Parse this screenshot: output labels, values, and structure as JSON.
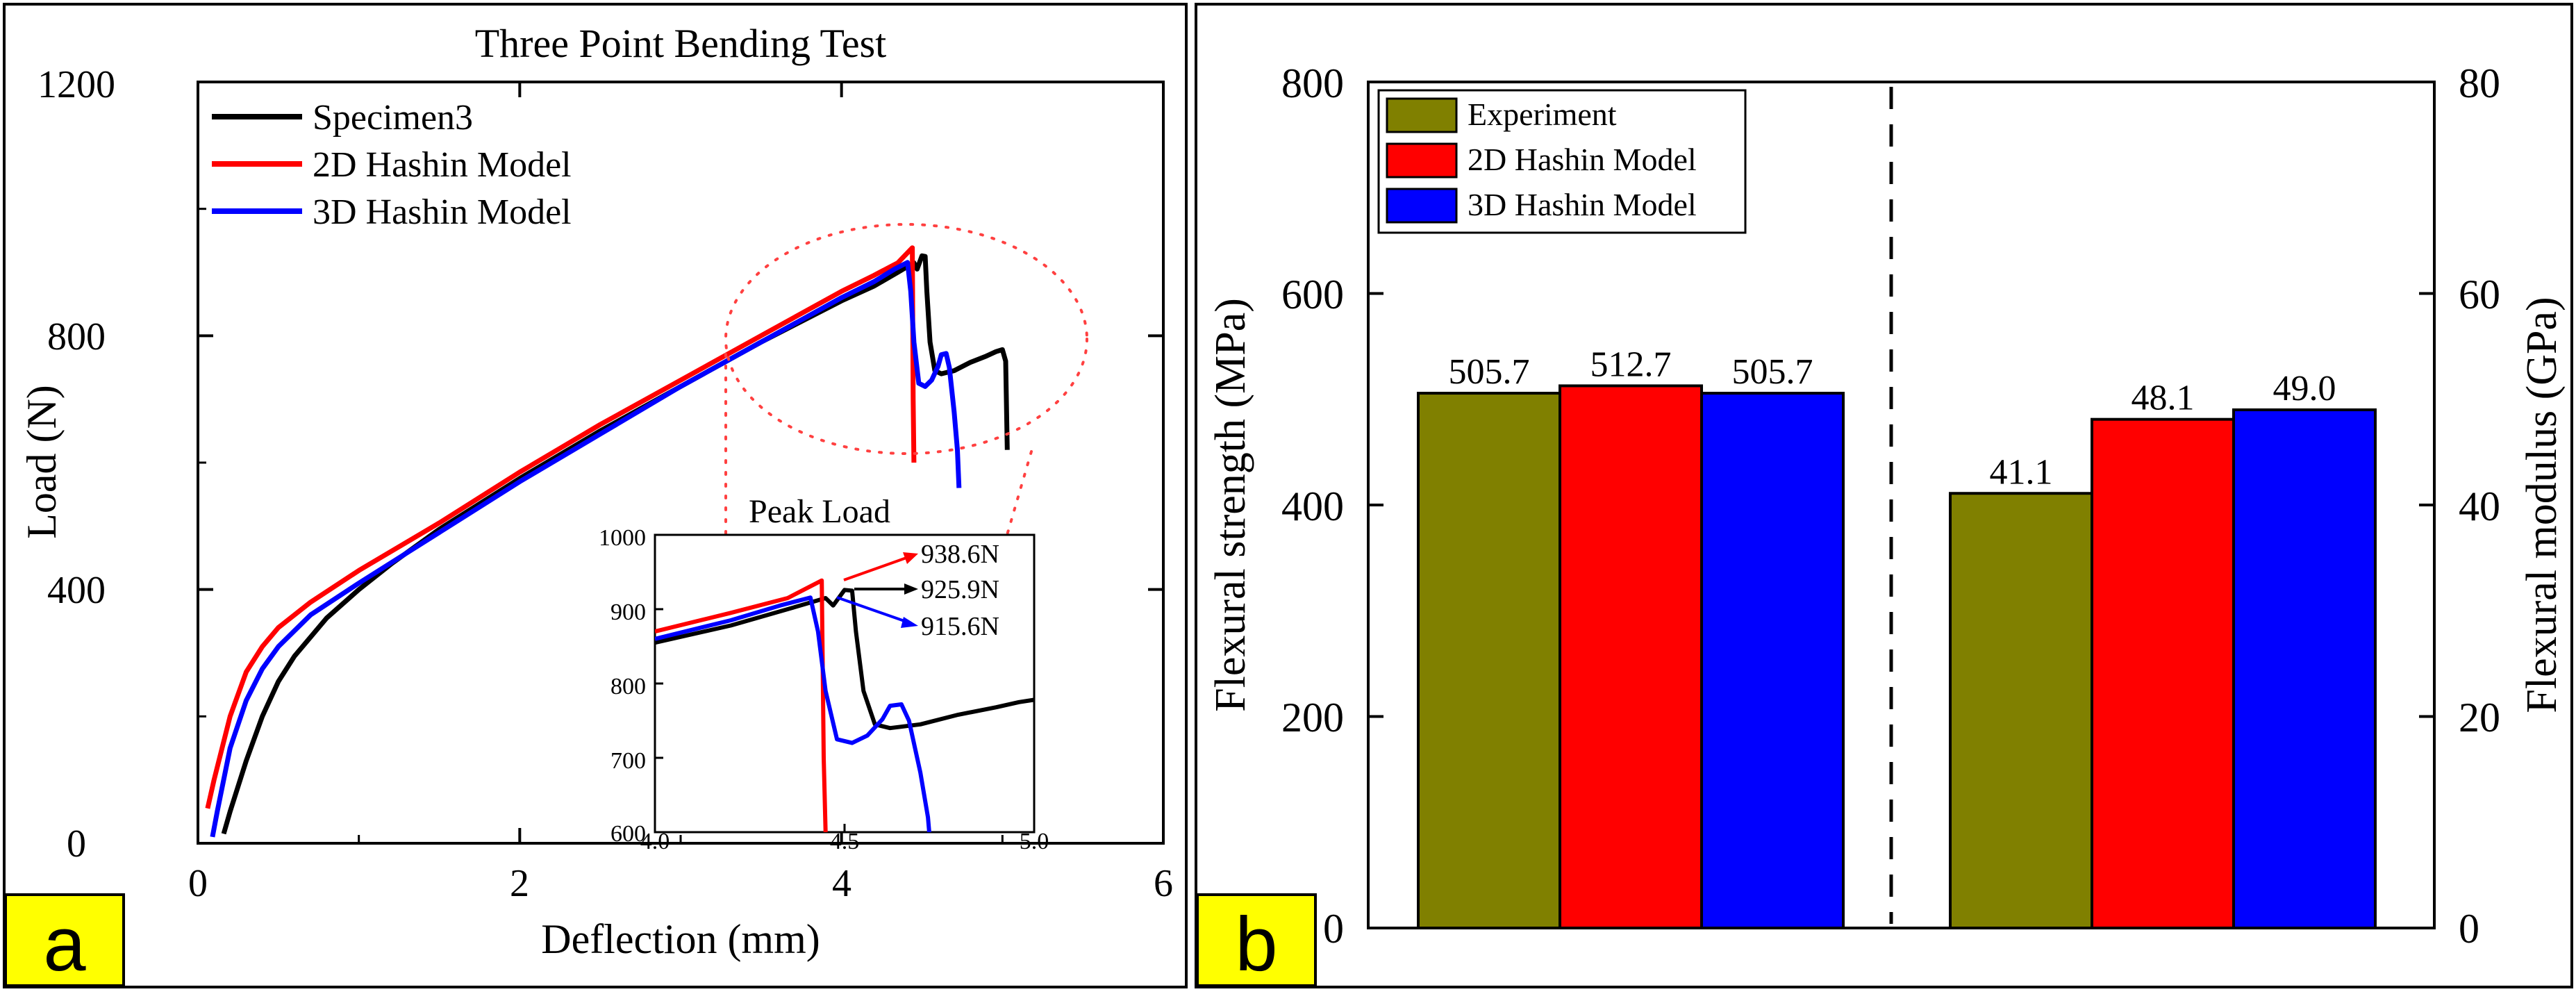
{
  "colors": {
    "specimen": "#000000",
    "hashin2d": "#ff0000",
    "hashin3d": "#0000ff",
    "experiment_bar": "#808000",
    "label_box": "#ffff00",
    "peak_ellipse": "#ff4040"
  },
  "panel_a": {
    "label": "a",
    "chart_data": {
      "type": "line",
      "title": "Three Point Bending Test",
      "xlabel": "Deflection (mm)",
      "ylabel": "Load (N)",
      "xlim": [
        0,
        6
      ],
      "ylim": [
        0,
        1200
      ],
      "xticks": [
        0,
        2,
        4,
        6
      ],
      "yticks": [
        0,
        400,
        800,
        1200
      ],
      "legend": [
        "Specimen3",
        "2D Hashin Model",
        "3D Hashin Model"
      ],
      "series": [
        {
          "name": "Specimen3",
          "color": "#000000",
          "points": [
            [
              0.16,
              15
            ],
            [
              0.2,
              50
            ],
            [
              0.3,
              130
            ],
            [
              0.4,
              200
            ],
            [
              0.5,
              255
            ],
            [
              0.6,
              295
            ],
            [
              0.8,
              355
            ],
            [
              1.0,
              400
            ],
            [
              1.2,
              440
            ],
            [
              1.5,
              495
            ],
            [
              2.0,
              575
            ],
            [
              2.5,
              650
            ],
            [
              3.0,
              720
            ],
            [
              3.5,
              790
            ],
            [
              4.0,
              855
            ],
            [
              4.2,
              878
            ],
            [
              4.35,
              900
            ],
            [
              4.45,
              915
            ],
            [
              4.47,
              905
            ],
            [
              4.5,
              925.9
            ],
            [
              4.52,
              925
            ],
            [
              4.53,
              870
            ],
            [
              4.55,
              790
            ],
            [
              4.58,
              745
            ],
            [
              4.62,
              740
            ],
            [
              4.7,
              745
            ],
            [
              4.8,
              758
            ],
            [
              4.9,
              768
            ],
            [
              4.96,
              775
            ],
            [
              5.0,
              778
            ],
            [
              5.02,
              760
            ],
            [
              5.03,
              620
            ]
          ]
        },
        {
          "name": "2D Hashin Model",
          "color": "#ff0000",
          "points": [
            [
              0.06,
              55
            ],
            [
              0.1,
              100
            ],
            [
              0.2,
              200
            ],
            [
              0.3,
              270
            ],
            [
              0.4,
              310
            ],
            [
              0.5,
              340
            ],
            [
              0.7,
              380
            ],
            [
              1.0,
              430
            ],
            [
              1.5,
              505
            ],
            [
              2.0,
              585
            ],
            [
              2.5,
              660
            ],
            [
              3.0,
              730
            ],
            [
              3.5,
              800
            ],
            [
              4.0,
              870
            ],
            [
              4.2,
              895
            ],
            [
              4.35,
              915
            ],
            [
              4.44,
              938.6
            ],
            [
              4.445,
              700
            ],
            [
              4.45,
              600
            ]
          ]
        },
        {
          "name": "3D Hashin Model",
          "color": "#0000ff",
          "points": [
            [
              0.09,
              10
            ],
            [
              0.12,
              50
            ],
            [
              0.2,
              150
            ],
            [
              0.3,
              225
            ],
            [
              0.4,
              275
            ],
            [
              0.5,
              310
            ],
            [
              0.7,
              360
            ],
            [
              1.0,
              410
            ],
            [
              1.5,
              490
            ],
            [
              2.0,
              570
            ],
            [
              2.5,
              645
            ],
            [
              3.0,
              720
            ],
            [
              3.5,
              790
            ],
            [
              4.0,
              860
            ],
            [
              4.2,
              885
            ],
            [
              4.33,
              905
            ],
            [
              4.41,
              915.6
            ],
            [
              4.43,
              870
            ],
            [
              4.45,
              790
            ],
            [
              4.48,
              725
            ],
            [
              4.52,
              720
            ],
            [
              4.56,
              730
            ],
            [
              4.6,
              752
            ],
            [
              4.62,
              770
            ],
            [
              4.65,
              772
            ],
            [
              4.67,
              750
            ],
            [
              4.7,
              680
            ],
            [
              4.72,
              620
            ],
            [
              4.73,
              560
            ]
          ]
        }
      ],
      "inset": {
        "title": "Peak Load",
        "xlim": [
          4.0,
          5.0
        ],
        "ylim": [
          600,
          1000
        ],
        "xticks": [
          "4.0",
          "4.5",
          "5.0"
        ],
        "yticks": [
          "600",
          "700",
          "800",
          "900",
          "1000"
        ],
        "annotations": [
          "938.6N",
          "925.9N",
          "915.6N"
        ]
      }
    }
  },
  "panel_b": {
    "label": "b",
    "chart_data": {
      "type": "bar",
      "legend": [
        "Experiment",
        "2D Hashin Model",
        "3D Hashin Model"
      ],
      "left_axis": {
        "label": "Flexural strength (MPa)",
        "ylim": [
          0,
          800
        ],
        "ticks": [
          "0",
          "200",
          "400",
          "600",
          "800"
        ]
      },
      "right_axis": {
        "label": "Flexural modulus (GPa)",
        "ylim": [
          0,
          80
        ],
        "ticks": [
          "0",
          "20",
          "40",
          "60",
          "80"
        ]
      },
      "groups": [
        {
          "name": "Flexural strength",
          "axis": "left",
          "values": [
            505.7,
            512.7,
            505.7
          ],
          "labels": [
            "505.7",
            "512.7",
            "505.7"
          ]
        },
        {
          "name": "Flexural modulus",
          "axis": "right",
          "values": [
            41.1,
            48.1,
            49.0
          ],
          "labels": [
            "41.1",
            "48.1",
            "49.0"
          ]
        }
      ]
    }
  }
}
